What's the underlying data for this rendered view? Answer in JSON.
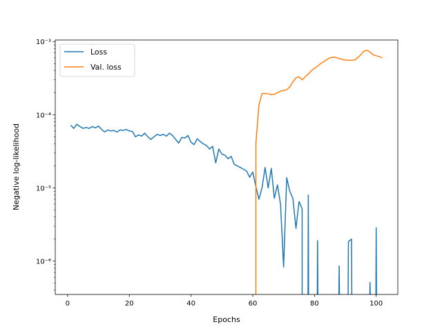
{
  "chart_data": {
    "type": "line",
    "xlabel": "Epochs",
    "ylabel": "Negative log-likelihood",
    "yscale": "log",
    "xlim": [
      -4,
      107
    ],
    "ylim": [
      3.5e-07,
      0.00105
    ],
    "grid": false,
    "legend_position": "top-left",
    "x_ticks": [
      0,
      20,
      40,
      60,
      80,
      100
    ],
    "x_tick_labels": [
      "0",
      "20",
      "40",
      "60",
      "80",
      "100"
    ],
    "y_ticks": [
      1e-06,
      1e-05,
      0.0001,
      0.001
    ],
    "y_tick_labels": [
      "10⁻⁶",
      "10⁻⁵",
      "10⁻⁴",
      "10⁻³"
    ],
    "series": [
      {
        "name": "Loss",
        "color": "#1f77b4",
        "points": [
          [
            1,
            7.2e-05
          ],
          [
            2,
            6.5e-05
          ],
          [
            3,
            7.4e-05
          ],
          [
            4,
            6.9e-05
          ],
          [
            5,
            6.5e-05
          ],
          [
            6,
            6.7e-05
          ],
          [
            7,
            6.5e-05
          ],
          [
            8,
            6.9e-05
          ],
          [
            9,
            6.6e-05
          ],
          [
            10,
            7e-05
          ],
          [
            11,
            6.3e-05
          ],
          [
            12,
            5.8e-05
          ],
          [
            13,
            6.2e-05
          ],
          [
            14,
            6e-05
          ],
          [
            15,
            6.1e-05
          ],
          [
            16,
            5.8e-05
          ],
          [
            17,
            6.2e-05
          ],
          [
            18,
            6.1e-05
          ],
          [
            19,
            6.3e-05
          ],
          [
            20,
            6e-05
          ],
          [
            21,
            5.9e-05
          ],
          [
            22,
            5e-05
          ],
          [
            23,
            5.3e-05
          ],
          [
            24,
            5.1e-05
          ],
          [
            25,
            5.6e-05
          ],
          [
            26,
            5e-05
          ],
          [
            27,
            4.6e-05
          ],
          [
            28,
            5e-05
          ],
          [
            29,
            5.4e-05
          ],
          [
            30,
            5.2e-05
          ],
          [
            31,
            5.4e-05
          ],
          [
            32,
            5.1e-05
          ],
          [
            33,
            5.6e-05
          ],
          [
            34,
            5.2e-05
          ],
          [
            35,
            4.6e-05
          ],
          [
            36,
            4.1e-05
          ],
          [
            37,
            4.9e-05
          ],
          [
            38,
            4.8e-05
          ],
          [
            39,
            5.2e-05
          ],
          [
            40,
            4.2e-05
          ],
          [
            41,
            3.9e-05
          ],
          [
            42,
            4.7e-05
          ],
          [
            43,
            4.3e-05
          ],
          [
            44,
            4e-05
          ],
          [
            45,
            3.8e-05
          ],
          [
            46,
            3.4e-05
          ],
          [
            47,
            3.7e-05
          ],
          [
            48,
            2.2e-05
          ],
          [
            49,
            3.4e-05
          ],
          [
            50,
            2.9e-05
          ],
          [
            51,
            2.8e-05
          ],
          [
            52,
            2.5e-05
          ],
          [
            53,
            2.7e-05
          ],
          [
            54,
            2.1e-05
          ],
          [
            55,
            2e-05
          ],
          [
            56,
            1.9e-05
          ],
          [
            57,
            1.8e-05
          ],
          [
            58,
            1.7e-05
          ],
          [
            59,
            1.4e-05
          ],
          [
            60,
            1.65e-05
          ],
          [
            61,
            1.05e-05
          ],
          [
            62,
            7e-06
          ],
          [
            63,
            1e-05
          ],
          [
            64,
            1.9e-05
          ],
          [
            65,
            1e-05
          ],
          [
            66,
            1.85e-05
          ],
          [
            67,
            7.2e-06
          ],
          [
            68,
            1.1e-05
          ],
          [
            69,
            6e-06
          ],
          [
            70,
            8.3e-07
          ],
          [
            71,
            1.38e-05
          ],
          [
            72,
            9e-06
          ],
          [
            73,
            7.2e-06
          ],
          [
            74,
            2.8e-06
          ],
          [
            75,
            6.5e-06
          ],
          [
            76,
            5.2e-06
          ],
          [
            76.01,
            3e-07
          ],
          [
            77.9,
            3e-07
          ],
          [
            78,
            8e-06
          ],
          [
            78.1,
            3e-07
          ],
          [
            80.9,
            3e-07
          ],
          [
            81,
            1.9e-06
          ],
          [
            81.1,
            3e-07
          ],
          [
            87.9,
            3e-07
          ],
          [
            88,
            8.6e-07
          ],
          [
            88.1,
            3e-07
          ],
          [
            90.9,
            3e-07
          ],
          [
            91,
            1.85e-06
          ],
          [
            92,
            2e-06
          ],
          [
            92.1,
            3e-07
          ],
          [
            97.9,
            3e-07
          ],
          [
            98,
            5.1e-07
          ],
          [
            98.1,
            3e-07
          ],
          [
            99.9,
            3e-07
          ],
          [
            100,
            2.85e-06
          ],
          [
            100.1,
            3e-07
          ]
        ]
      },
      {
        "name": "Val. loss",
        "color": "#ff7f0e",
        "points": [
          [
            61,
            3e-07
          ],
          [
            61.01,
            4e-05
          ],
          [
            62,
            0.000135
          ],
          [
            63,
            0.000195
          ],
          [
            64,
            0.000196
          ],
          [
            65,
            0.000193
          ],
          [
            66,
            0.000188
          ],
          [
            67,
            0.00019
          ],
          [
            68,
            0.0002
          ],
          [
            69,
            0.00021
          ],
          [
            70,
            0.000215
          ],
          [
            71,
            0.00022
          ],
          [
            72,
            0.00024
          ],
          [
            73,
            0.00028
          ],
          [
            74,
            0.00032
          ],
          [
            75,
            0.00033
          ],
          [
            76,
            0.0003
          ],
          [
            77,
            0.00033
          ],
          [
            78,
            0.00036
          ],
          [
            79,
            0.0004
          ],
          [
            80,
            0.00043
          ],
          [
            81,
            0.00046
          ],
          [
            82,
            0.0005
          ],
          [
            83,
            0.00053
          ],
          [
            84,
            0.00057
          ],
          [
            85,
            0.0006
          ],
          [
            86,
            0.00061
          ],
          [
            87,
            0.000605
          ],
          [
            88,
            0.000585
          ],
          [
            89,
            0.00057
          ],
          [
            90,
            0.00056
          ],
          [
            91,
            0.000555
          ],
          [
            92,
            0.000555
          ],
          [
            93,
            0.00056
          ],
          [
            94,
            0.0006
          ],
          [
            95,
            0.00066
          ],
          [
            96,
            0.00074
          ],
          [
            97,
            0.00076
          ],
          [
            98,
            0.00072
          ],
          [
            99,
            0.00066
          ],
          [
            100,
            0.00064
          ],
          [
            101,
            0.00062
          ],
          [
            102,
            0.0006
          ]
        ]
      }
    ]
  }
}
